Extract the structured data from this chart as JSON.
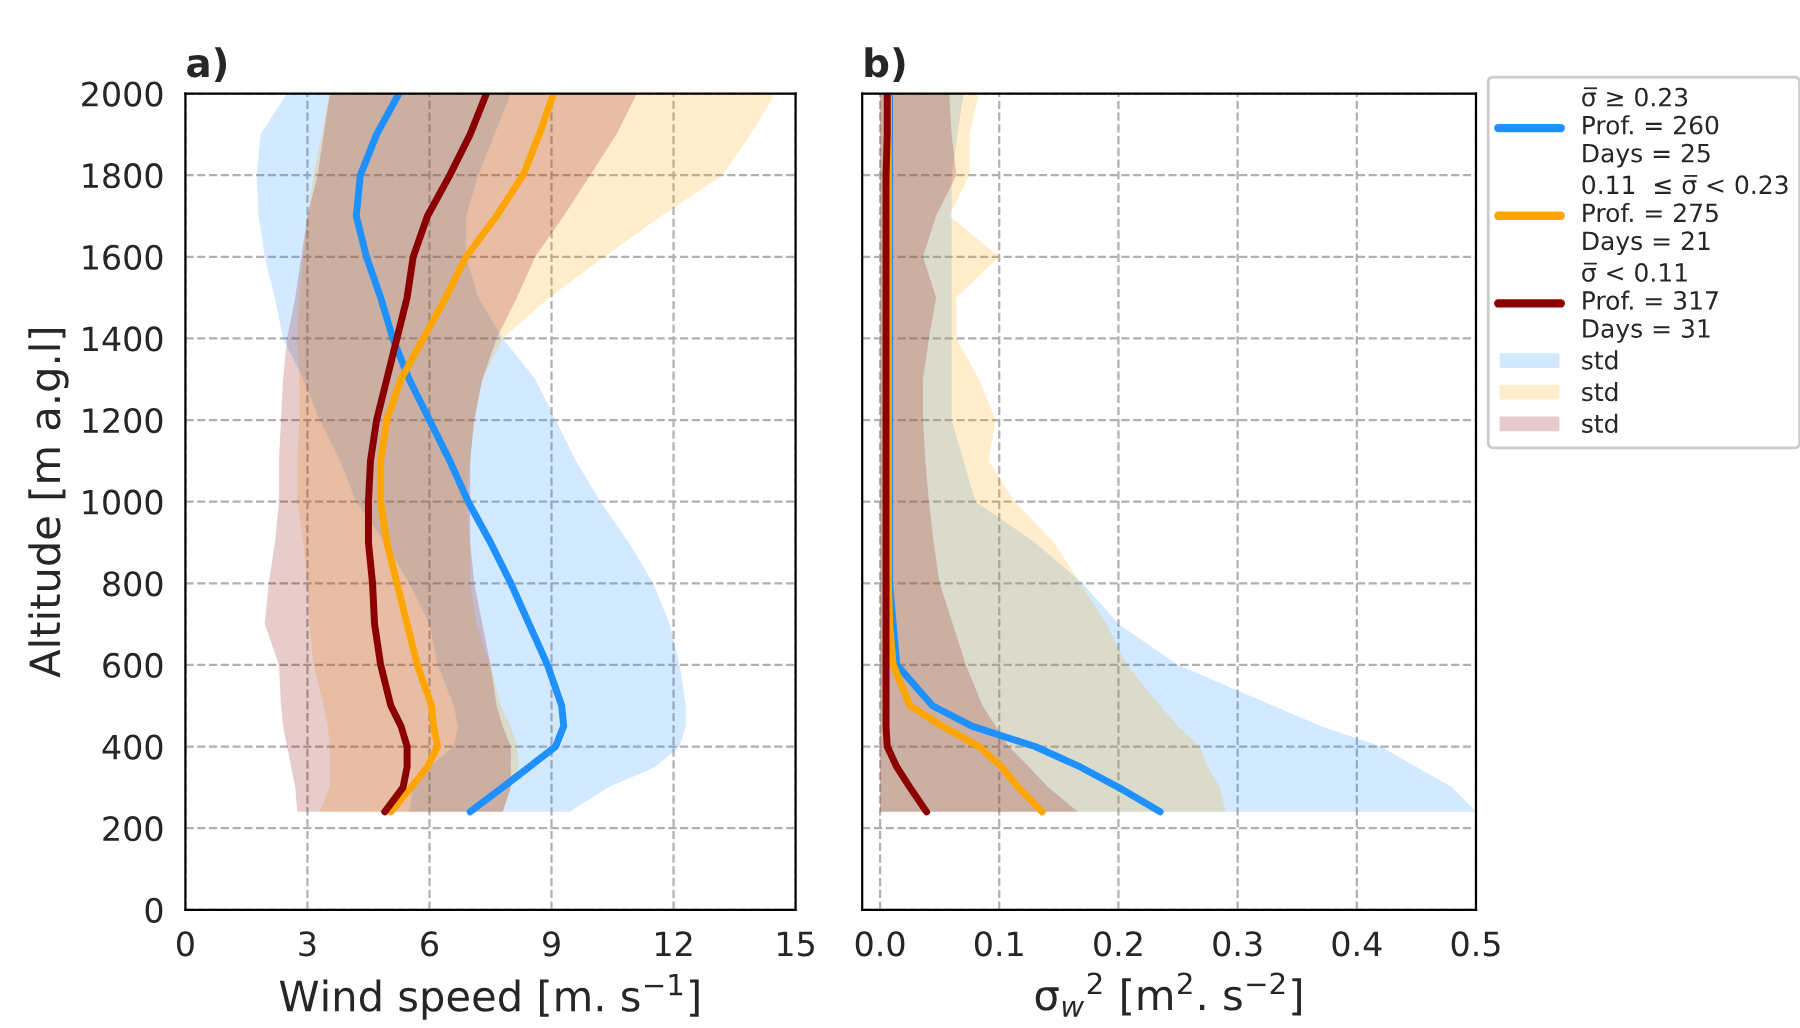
{
  "chart_data": [
    {
      "type": "line",
      "title": "a)",
      "orientation": "horizontal",
      "xlabel": "Wind speed [m. s$^{−1}$]",
      "ylabel": "Altitude [m a.g.l]",
      "x": [
        240,
        300,
        350,
        400,
        450,
        500,
        600,
        700,
        800,
        900,
        1000,
        1100,
        1200,
        1300,
        1400,
        1500,
        1600,
        1700,
        1800,
        1900,
        2000
      ],
      "series": [
        {
          "color": "#1e90ff",
          "values": [
            7.0,
            7.8,
            8.45,
            9.1,
            9.3,
            9.25,
            8.9,
            8.45,
            8.0,
            7.5,
            6.95,
            6.5,
            6.0,
            5.5,
            5.1,
            4.8,
            4.45,
            4.2,
            4.3,
            4.7,
            5.25
          ],
          "lower": [
            5.5,
            5.6,
            6.0,
            6.6,
            6.7,
            6.6,
            6.2,
            6.0,
            5.5,
            4.9,
            4.2,
            3.8,
            3.3,
            2.9,
            2.4,
            2.2,
            1.95,
            1.8,
            1.75,
            1.85,
            2.5
          ],
          "upper": [
            9.45,
            10.4,
            11.55,
            12.15,
            12.3,
            12.3,
            12.15,
            11.9,
            11.5,
            10.9,
            10.2,
            9.6,
            9.1,
            8.6,
            7.8,
            7.2,
            6.9,
            6.9,
            7.2,
            7.6,
            8.0
          ]
        },
        {
          "color": "#ffa500",
          "values": [
            5.05,
            5.55,
            5.95,
            6.2,
            6.1,
            6.05,
            5.7,
            5.45,
            5.2,
            4.95,
            4.8,
            4.8,
            4.95,
            5.3,
            5.85,
            6.4,
            6.9,
            7.65,
            8.3,
            8.7,
            9.05
          ],
          "lower": [
            3.3,
            3.55,
            3.55,
            3.55,
            3.5,
            3.4,
            3.15,
            3.05,
            3.0,
            2.9,
            2.75,
            2.75,
            2.8,
            2.8,
            2.75,
            2.8,
            2.9,
            3.0,
            3.15,
            3.35,
            3.55
          ],
          "upper": [
            7.8,
            8.0,
            8.2,
            8.15,
            8.0,
            7.75,
            7.5,
            7.15,
            7.0,
            7.0,
            6.9,
            7.0,
            7.1,
            7.3,
            7.8,
            8.95,
            10.3,
            11.7,
            13.2,
            13.9,
            14.5
          ]
        },
        {
          "color": "#8b0000",
          "values": [
            4.9,
            5.35,
            5.45,
            5.45,
            5.3,
            5.05,
            4.8,
            4.65,
            4.6,
            4.5,
            4.5,
            4.55,
            4.7,
            4.95,
            5.2,
            5.45,
            5.6,
            5.95,
            6.5,
            7.0,
            7.4
          ],
          "lower": [
            2.75,
            2.7,
            2.6,
            2.5,
            2.4,
            2.35,
            2.3,
            1.95,
            2.05,
            2.2,
            2.3,
            2.3,
            2.35,
            2.4,
            2.5,
            2.7,
            2.85,
            3.0,
            3.25,
            3.4,
            3.55
          ],
          "upper": [
            7.8,
            8.0,
            8.0,
            8.0,
            7.8,
            7.65,
            7.5,
            7.3,
            7.1,
            7.0,
            7.0,
            7.0,
            7.1,
            7.3,
            7.65,
            8.15,
            8.6,
            9.3,
            9.95,
            10.6,
            11.1
          ]
        }
      ],
      "xlim": [
        0,
        15
      ],
      "xticks": [
        0,
        3,
        6,
        9,
        12,
        15
      ],
      "ylim": [
        0,
        2000
      ],
      "yticks": [
        0,
        200,
        400,
        600,
        800,
        1000,
        1200,
        1400,
        1600,
        1800,
        2000
      ],
      "grid": true,
      "line_style": "solid"
    },
    {
      "type": "line",
      "title": "b)",
      "orientation": "horizontal",
      "xlabel": "σ$_{w}$$^{2}$ [m$^{2}$. s$^{−2}$]",
      "annotations": [
        "std",
        "std",
        "std"
      ],
      "x": [
        240,
        300,
        350,
        400,
        450,
        500,
        600,
        700,
        800,
        900,
        1000,
        1100,
        1200,
        1300,
        1400,
        1500,
        1600,
        1700,
        1800,
        1900,
        2000
      ],
      "series": [
        {
          "name": "σ̅ ≥ 0.23\nProf. = 260\nDays = 25",
          "color": "#1e90ff",
          "values": [
            0.235,
            0.2,
            0.168,
            0.13,
            0.077,
            0.044,
            0.014,
            0.011,
            0.008,
            0.008,
            0.008,
            0.008,
            0.008,
            0.008,
            0.008,
            0.008,
            0.008,
            0.008,
            0.008,
            0.008,
            0.008
          ],
          "lower": [
            0,
            0,
            0,
            0,
            0,
            0,
            0,
            0,
            0,
            0,
            0,
            0,
            0,
            0,
            0,
            0,
            0,
            0,
            0,
            0,
            0
          ],
          "upper": [
            0.5,
            0.48,
            0.45,
            0.42,
            0.37,
            0.33,
            0.25,
            0.2,
            0.17,
            0.13,
            0.08,
            0.07,
            0.06,
            0.06,
            0.06,
            0.06,
            0.06,
            0.06,
            0.06,
            0.065,
            0.07
          ]
        },
        {
          "name": "0.11  ≤ σ̅ < 0.23\nProf. = 275\nDays = 21",
          "color": "#ffa500",
          "values": [
            0.136,
            0.116,
            0.102,
            0.083,
            0.052,
            0.025,
            0.011,
            0.008,
            0.007,
            0.007,
            0.007,
            0.007,
            0.007,
            0.007,
            0.007,
            0.007,
            0.007,
            0.007,
            0.007,
            0.007,
            0.007
          ],
          "lower": [
            0,
            0,
            0,
            0,
            0,
            0,
            0,
            0,
            0,
            0,
            0,
            0,
            0,
            0,
            0,
            0,
            0,
            0,
            0,
            0,
            0
          ],
          "upper": [
            0.29,
            0.285,
            0.275,
            0.268,
            0.25,
            0.235,
            0.207,
            0.19,
            0.168,
            0.146,
            0.113,
            0.091,
            0.097,
            0.083,
            0.064,
            0.064,
            0.1,
            0.058,
            0.075,
            0.075,
            0.083
          ]
        },
        {
          "name": "σ̅ < 0.11\nProf. = 317\nDays = 31",
          "color": "#8b0000",
          "values": [
            0.039,
            0.025,
            0.014,
            0.006,
            0.005,
            0.005,
            0.005,
            0.005,
            0.005,
            0.005,
            0.005,
            0.005,
            0.005,
            0.005,
            0.005,
            0.005,
            0.005,
            0.005,
            0.005,
            0.006,
            0.006
          ],
          "lower": [
            0,
            0,
            0,
            0,
            0,
            0,
            0,
            0,
            0,
            0,
            0,
            0,
            0,
            0,
            0,
            0,
            0,
            0,
            0,
            0,
            0
          ],
          "upper": [
            0.166,
            0.141,
            0.125,
            0.108,
            0.097,
            0.086,
            0.072,
            0.061,
            0.05,
            0.045,
            0.041,
            0.038,
            0.036,
            0.036,
            0.041,
            0.047,
            0.036,
            0.047,
            0.064,
            0.06,
            0.058
          ]
        }
      ],
      "xlim": [
        -0.015,
        0.5
      ],
      "xticks": [
        {
          "value": 0,
          "label": "0.0"
        },
        0.1,
        0.2,
        0.3,
        0.4,
        0.5
      ],
      "ylim": [
        0,
        2000
      ],
      "yticks": [
        0,
        200,
        400,
        600,
        800,
        1000,
        1200,
        1400,
        1600,
        1800,
        2000
      ],
      "tick_labels": "x",
      "grid": true,
      "legend": "right",
      "line_style": "solid"
    }
  ]
}
